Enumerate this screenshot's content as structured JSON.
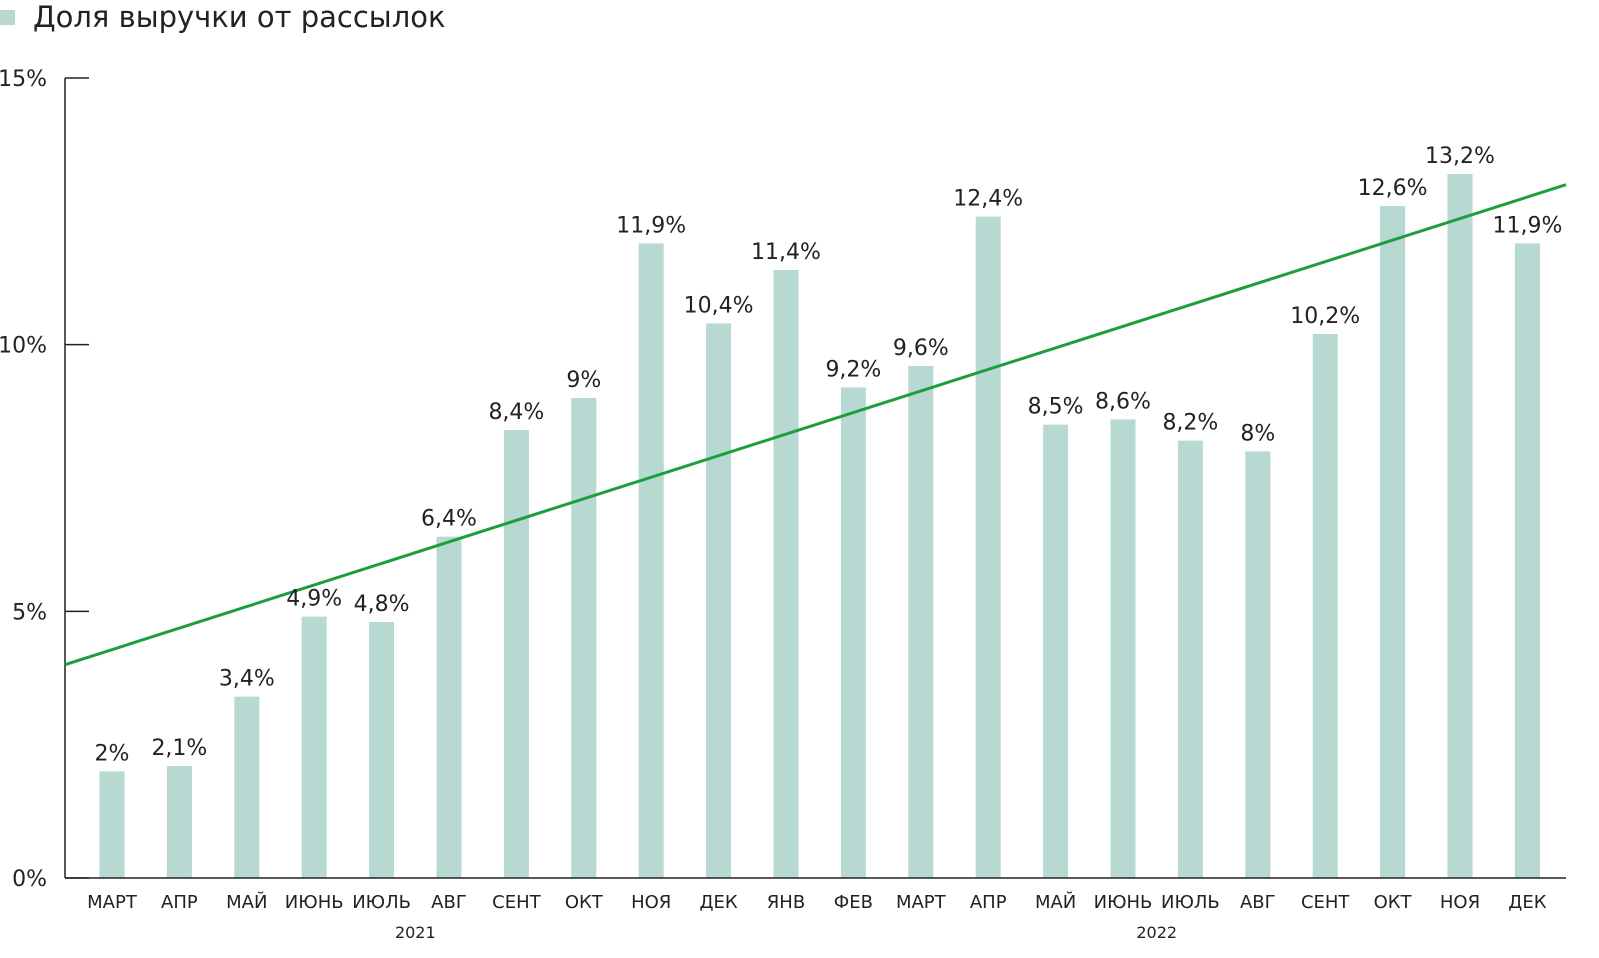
{
  "chart_data": {
    "type": "bar",
    "legend": {
      "label": "Доля выручки от рассылок",
      "placement": "top-left"
    },
    "categories": [
      "МАРТ",
      "АПР",
      "МАЙ",
      "ИЮНЬ",
      "ИЮЛЬ",
      "АВГ",
      "СЕНТ",
      "ОКТ",
      "НОЯ",
      "ДЕК",
      "ЯНВ",
      "ФЕВ",
      "МАРТ",
      "АПР",
      "МАЙ",
      "ИЮНЬ",
      "ИЮЛЬ",
      "АВГ",
      "СЕНТ",
      "ОКТ",
      "НОЯ",
      "ДЕК"
    ],
    "values": [
      2,
      2.1,
      3.4,
      4.9,
      4.8,
      6.4,
      8.4,
      9,
      11.9,
      10.4,
      11.4,
      9.2,
      9.6,
      12.4,
      8.5,
      8.6,
      8.2,
      8,
      10.2,
      12.6,
      13.2,
      11.9
    ],
    "data_labels": [
      "2%",
      "2,1%",
      "3,4%",
      "4,9%",
      "4,8%",
      "6,4%",
      "8,4%",
      "9%",
      "11,9%",
      "10,4%",
      "11,4%",
      "9,2%",
      "9,6%",
      "12,4%",
      "8,5%",
      "8,6%",
      "8,2%",
      "8%",
      "10,2%",
      "12,6%",
      "13,2%",
      "11,9%"
    ],
    "year_groups": [
      {
        "label": "2021",
        "from": 0,
        "to": 9
      },
      {
        "label": "2022",
        "from": 10,
        "to": 21
      }
    ],
    "ylim": [
      0,
      15
    ],
    "yticks": [
      0,
      5,
      10,
      15
    ],
    "ytick_labels": [
      "0%",
      "5%",
      "10%",
      "15%"
    ],
    "trendline": {
      "start": 4.0,
      "end": 13.0
    },
    "grid": false,
    "colors": {
      "bar": "#b7d9d2",
      "trend": "#1d9e3e",
      "axis": "#222222",
      "text": "#222222"
    }
  }
}
